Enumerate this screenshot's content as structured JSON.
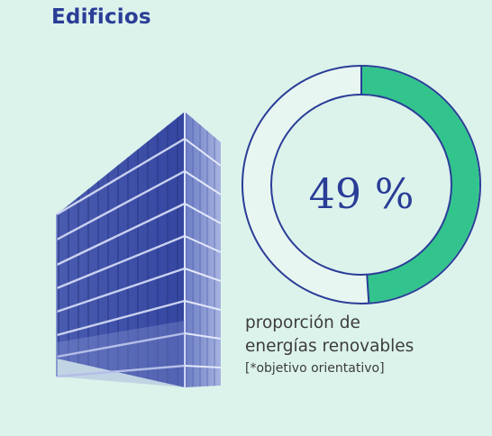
{
  "header": {
    "title": "Edificios"
  },
  "colors": {
    "accent": "#33c48d",
    "primary": "#2a3d97",
    "background": "#dcf3ec",
    "track": "#e8f6f1"
  },
  "illustration": {
    "icon": "office-building-icon"
  },
  "chart_data": {
    "type": "pie",
    "value_percent": 49,
    "value_label": "49 %",
    "caption_lines": [
      "proporción de",
      "energías renovables"
    ],
    "note": "[*objetivo orientativo]"
  }
}
